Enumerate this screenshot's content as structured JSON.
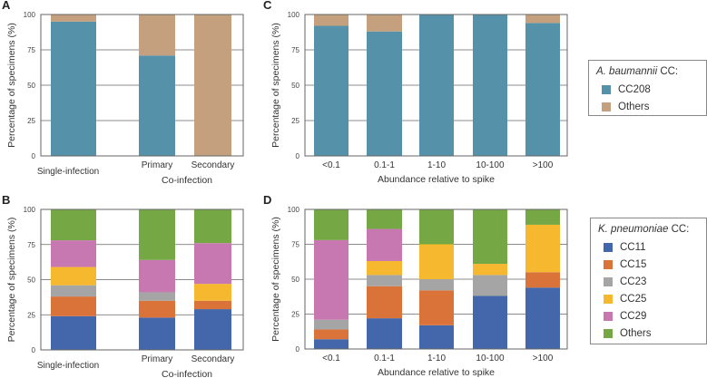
{
  "chart_data": [
    {
      "panel": "A",
      "type": "bar",
      "stacked": true,
      "categories": [
        "Single-infection",
        "Primary",
        "Secondary"
      ],
      "group_label": "Co-infection",
      "ylabel": "Percentage of specimens (%)",
      "ylim": [
        0,
        100
      ],
      "yticks": [
        0,
        25,
        50,
        75,
        100
      ],
      "grid": true,
      "series": [
        {
          "name": "CC208",
          "color": "#5592a9",
          "values": [
            95,
            71,
            0
          ]
        },
        {
          "name": "Others",
          "color": "#c4a07f",
          "values": [
            5,
            29,
            100
          ]
        }
      ]
    },
    {
      "panel": "B",
      "type": "bar",
      "stacked": true,
      "categories": [
        "Single-infection",
        "Primary",
        "Secondary"
      ],
      "group_label": "Co-infection",
      "ylabel": "Percentage of specimens (%)",
      "ylim": [
        0,
        100
      ],
      "yticks": [
        0,
        25,
        50,
        75,
        100
      ],
      "grid": true,
      "series": [
        {
          "name": "CC11",
          "color": "#4467ab",
          "values": [
            24,
            23,
            29
          ]
        },
        {
          "name": "CC15",
          "color": "#d9733a",
          "values": [
            14,
            12,
            6
          ]
        },
        {
          "name": "CC23",
          "color": "#a5a5a5",
          "values": [
            8,
            6,
            0
          ]
        },
        {
          "name": "CC25",
          "color": "#f5b82e",
          "values": [
            13,
            0,
            12
          ]
        },
        {
          "name": "CC29",
          "color": "#c878b0",
          "values": [
            19,
            23,
            29
          ]
        },
        {
          "name": "Others",
          "color": "#75a845",
          "values": [
            22,
            36,
            24
          ]
        }
      ]
    },
    {
      "panel": "C",
      "type": "bar",
      "stacked": true,
      "categories": [
        "<0.1",
        "0.1-1",
        "1-10",
        "10-100",
        ">100"
      ],
      "xlabel": "Abundance relative to spike",
      "ylabel": "Percentage of specimens (%)",
      "ylim": [
        0,
        100
      ],
      "yticks": [
        0,
        25,
        50,
        75,
        100
      ],
      "grid": true,
      "series": [
        {
          "name": "CC208",
          "color": "#5592a9",
          "values": [
            92,
            88,
            100,
            100,
            94
          ]
        },
        {
          "name": "Others",
          "color": "#c4a07f",
          "values": [
            8,
            12,
            0,
            0,
            6
          ]
        }
      ]
    },
    {
      "panel": "D",
      "type": "bar",
      "stacked": true,
      "categories": [
        "<0.1",
        "0.1-1",
        "1-10",
        "10-100",
        ">100"
      ],
      "xlabel": "Abundance relative to spike",
      "ylabel": "Percentage of specimens (%)",
      "ylim": [
        0,
        100
      ],
      "yticks": [
        0,
        25,
        50,
        75,
        100
      ],
      "grid": true,
      "series": [
        {
          "name": "CC11",
          "color": "#4467ab",
          "values": [
            7,
            22,
            17,
            38,
            44
          ]
        },
        {
          "name": "CC15",
          "color": "#d9733a",
          "values": [
            7,
            23,
            25,
            0,
            11
          ]
        },
        {
          "name": "CC23",
          "color": "#a5a5a5",
          "values": [
            7,
            8,
            8,
            15,
            0
          ]
        },
        {
          "name": "CC25",
          "color": "#f5b82e",
          "values": [
            0,
            10,
            25,
            8,
            34
          ]
        },
        {
          "name": "CC29",
          "color": "#c878b0",
          "values": [
            57,
            23,
            0,
            0,
            0
          ]
        },
        {
          "name": "Others",
          "color": "#75a845",
          "values": [
            22,
            14,
            25,
            39,
            11
          ]
        }
      ]
    }
  ],
  "legends": {
    "ab": {
      "title_italic": "A. baumannii",
      "title_suffix": " CC:",
      "items": [
        {
          "label": "CC208",
          "color": "#5592a9"
        },
        {
          "label": "Others",
          "color": "#c4a07f"
        }
      ]
    },
    "kp": {
      "title_italic": "K. pneumoniae",
      "title_suffix": " CC:",
      "items": [
        {
          "label": "CC11",
          "color": "#4467ab"
        },
        {
          "label": "CC15",
          "color": "#d9733a"
        },
        {
          "label": "CC23",
          "color": "#a5a5a5"
        },
        {
          "label": "CC25",
          "color": "#f5b82e"
        },
        {
          "label": "CC29",
          "color": "#c878b0"
        },
        {
          "label": "Others",
          "color": "#75a845"
        }
      ]
    }
  }
}
